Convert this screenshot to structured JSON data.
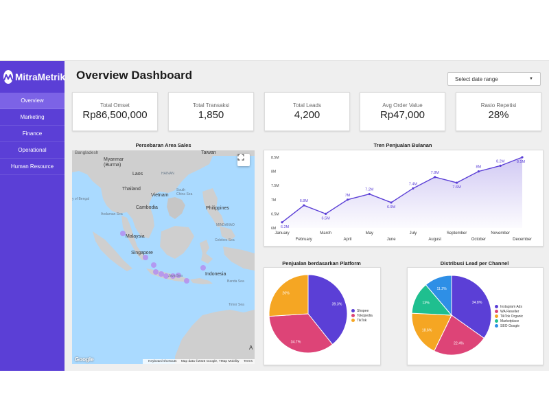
{
  "brand": {
    "name": "MitraMetrik"
  },
  "sidebar": {
    "items": [
      {
        "label": "Overview",
        "active": true
      },
      {
        "label": "Marketing"
      },
      {
        "label": "Finance"
      },
      {
        "label": "Operational"
      },
      {
        "label": "Human Resource"
      }
    ]
  },
  "page": {
    "title": "Overview Dashboard"
  },
  "date_range": {
    "placeholder": "Select date range",
    "icon": "caret-down-icon"
  },
  "kpis": [
    {
      "label": "Total Omset",
      "value": "Rp86,500,000"
    },
    {
      "label": "Total Transaksi",
      "value": "1,850"
    },
    {
      "label": "Total Leads",
      "value": "4,200"
    },
    {
      "label": "Avg Order Value",
      "value": "Rp47,000"
    },
    {
      "label": "Rasio Repetisi",
      "value": "28%"
    }
  ],
  "map": {
    "title": "Persebaran Area Sales",
    "labels": {
      "bangladesh": "Bangladesh",
      "taiwan": "Taiwan",
      "myanmar": "Myanmar\n(Burma)",
      "laos": "Laos",
      "hainan": "HAINAN",
      "thailand": "Thailand",
      "vietnam": "Vietnam",
      "south_china_sea": "South\nChina Sea",
      "bay_of_bengal": "y of Bengal",
      "cambodia": "Cambodia",
      "philippines": "Philippines",
      "andaman_sea": "Andaman Sea",
      "mindanao": "MINDANAO",
      "malaysia": "Malaysia",
      "singapore": "Singapore",
      "celebes_sea": "Celebes Sea",
      "indonesia": "Indonesia",
      "java_sea": "Java Sea",
      "banda_sea": "Banda Sea",
      "timor_sea": "Timor Sea",
      "australia_first_letter": "A"
    },
    "attribution": {
      "logo": "Google",
      "shortcuts": "Keyboard shortcuts",
      "data": "Map data ©2025 Google, TMap Mobility",
      "terms": "Terms"
    },
    "fullscreen_icon": "fullscreen-icon",
    "marker_color": "#b48ef0"
  },
  "chart_data": [
    {
      "type": "area",
      "title": "Tren Penjualan Bulanan",
      "categories": [
        "January",
        "February",
        "March",
        "April",
        "May",
        "June",
        "July",
        "August",
        "September",
        "October",
        "November",
        "December"
      ],
      "values": [
        6.2,
        6.8,
        6.5,
        7.0,
        7.2,
        6.9,
        7.4,
        7.8,
        7.6,
        8.0,
        8.2,
        8.5
      ],
      "data_labels": [
        "6.2M",
        "6.8M",
        "6.5M",
        "7M",
        "7.2M",
        "6.9M",
        "7.4M",
        "7.8M",
        "7.6M",
        "8M",
        "8.2M",
        "8.5M"
      ],
      "y_ticks": [
        "6M",
        "6.5M",
        "7M",
        "7.5M",
        "8M",
        "8.5M"
      ],
      "ylim": [
        6,
        8.5
      ],
      "grid": false,
      "color": "#5b3fd6"
    },
    {
      "type": "pie",
      "title": "Penjualan berdasarkan Platform",
      "labels": [
        "Shopee",
        "Tokopedia",
        "TikTok"
      ],
      "values": [
        39.3,
        34.7,
        26
      ],
      "data_labels": [
        "39.3%",
        "34.7%",
        "26%"
      ],
      "colors": [
        "#5b3fd6",
        "#dd4477",
        "#f5a623"
      ],
      "legend": "right"
    },
    {
      "type": "pie",
      "title": "Distribusi Lead per Channel",
      "labels": [
        "Instagram Ads",
        "WA Reseller",
        "TikTok Organic",
        "Marketplace",
        "SEO Google"
      ],
      "values": [
        34.8,
        22.4,
        18.6,
        13,
        11.2
      ],
      "data_labels": [
        "34.8%",
        "22.4%",
        "18.6%",
        "13%",
        "11.2%"
      ],
      "colors": [
        "#5b3fd6",
        "#dd4477",
        "#f5a623",
        "#1fbf8f",
        "#2e8fe6"
      ],
      "legend": "right"
    }
  ]
}
